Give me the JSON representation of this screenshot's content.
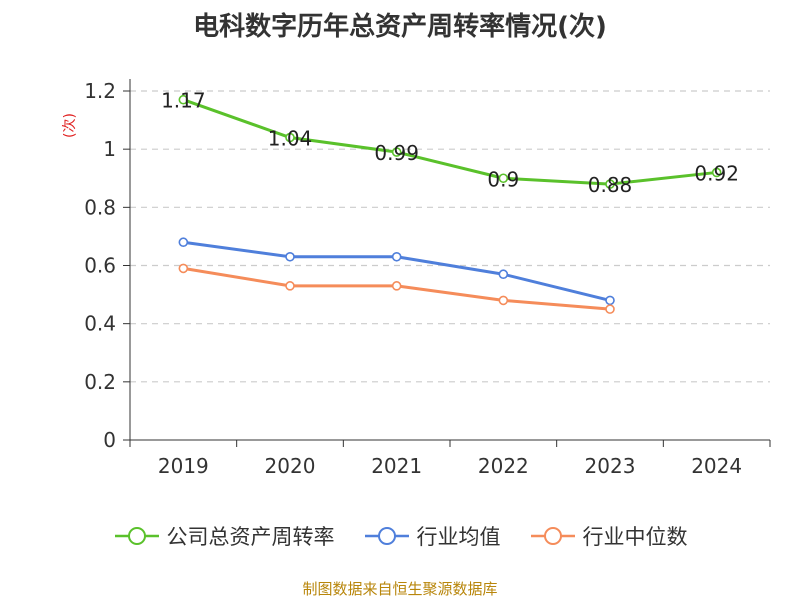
{
  "chart_data": {
    "type": "line",
    "title": "电科数字历年总资产周转率情况(次)",
    "ylabel": "(次)",
    "categories": [
      "2019",
      "2020",
      "2021",
      "2022",
      "2023",
      "2024"
    ],
    "ylim": [
      0,
      1.2
    ],
    "yticks": [
      "0",
      "0.2",
      "0.4",
      "0.6",
      "0.8",
      "1",
      "1.2"
    ],
    "grid": true,
    "legend_position": "bottom",
    "series": [
      {
        "name": "公司总资产周转率",
        "color": "#5ac12b",
        "values": [
          1.17,
          1.04,
          0.99,
          0.9,
          0.88,
          0.92
        ],
        "labels": [
          "1.17",
          "1.04",
          "0.99",
          "0.9",
          "0.88",
          "0.92"
        ]
      },
      {
        "name": "行业均值",
        "color": "#4f7fdb",
        "values": [
          0.68,
          0.63,
          0.63,
          0.57,
          0.48,
          null
        ]
      },
      {
        "name": "行业中位数",
        "color": "#f58c5a",
        "values": [
          0.59,
          0.53,
          0.53,
          0.48,
          0.45,
          null
        ]
      }
    ],
    "source": "制图数据来自恒生聚源数据库"
  }
}
